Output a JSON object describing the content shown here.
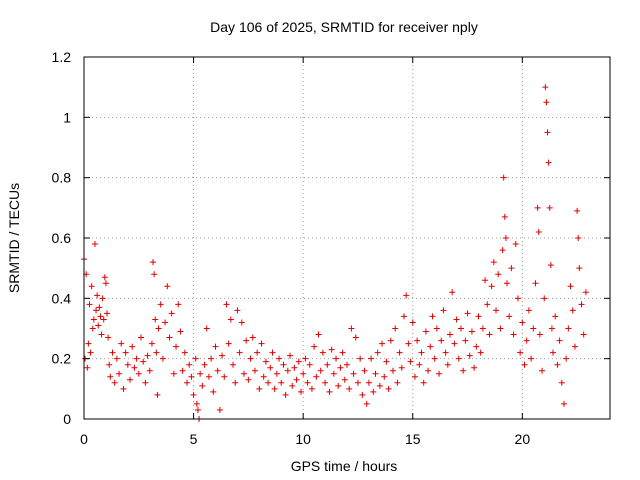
{
  "chart_data": {
    "type": "scatter",
    "title": "Day 106 of 2025, SRMTID for receiver nply",
    "xlabel": "GPS time / hours",
    "ylabel": "SRMTID / TECUs",
    "xlim": [
      0,
      24
    ],
    "ylim": [
      0,
      1.2
    ],
    "x_ticks": [
      0,
      5,
      10,
      15,
      20
    ],
    "x_tick_labels": [
      "0",
      "5",
      "10",
      "15",
      "20"
    ],
    "y_ticks": [
      0,
      0.2,
      0.4,
      0.6,
      0.8,
      1.0,
      1.2
    ],
    "y_tick_labels": [
      "0",
      "0.2",
      "0.4",
      "0.6",
      "0.8",
      "1",
      "1.2"
    ],
    "grid": true,
    "marker": "+",
    "color": "#e00000",
    "series": [
      {
        "name": "SRMTID",
        "points": [
          [
            0.0,
            0.53
          ],
          [
            0.05,
            0.2
          ],
          [
            0.1,
            0.48
          ],
          [
            0.15,
            0.17
          ],
          [
            0.2,
            0.25
          ],
          [
            0.25,
            0.38
          ],
          [
            0.3,
            0.22
          ],
          [
            0.35,
            0.44
          ],
          [
            0.4,
            0.3
          ],
          [
            0.45,
            0.33
          ],
          [
            0.5,
            0.58
          ],
          [
            0.55,
            0.36
          ],
          [
            0.6,
            0.41
          ],
          [
            0.65,
            0.31
          ],
          [
            0.7,
            0.37
          ],
          [
            0.75,
            0.34
          ],
          [
            0.8,
            0.28
          ],
          [
            0.85,
            0.4
          ],
          [
            0.9,
            0.33
          ],
          [
            0.95,
            0.47
          ],
          [
            1.0,
            0.45
          ],
          [
            1.05,
            0.35
          ],
          [
            1.1,
            0.27
          ],
          [
            1.15,
            0.18
          ],
          [
            1.2,
            0.14
          ],
          [
            1.3,
            0.22
          ],
          [
            1.4,
            0.12
          ],
          [
            1.5,
            0.2
          ],
          [
            1.6,
            0.15
          ],
          [
            1.7,
            0.25
          ],
          [
            1.8,
            0.1
          ],
          [
            1.9,
            0.22
          ],
          [
            2.0,
            0.18
          ],
          [
            2.1,
            0.13
          ],
          [
            2.2,
            0.24
          ],
          [
            2.3,
            0.17
          ],
          [
            2.4,
            0.2
          ],
          [
            2.5,
            0.15
          ],
          [
            2.6,
            0.27
          ],
          [
            2.7,
            0.19
          ],
          [
            2.8,
            0.12
          ],
          [
            2.9,
            0.21
          ],
          [
            3.0,
            0.16
          ],
          [
            3.1,
            0.25
          ],
          [
            3.15,
            0.52
          ],
          [
            3.2,
            0.48
          ],
          [
            3.25,
            0.33
          ],
          [
            3.3,
            0.22
          ],
          [
            3.35,
            0.08
          ],
          [
            3.4,
            0.3
          ],
          [
            3.5,
            0.38
          ],
          [
            3.6,
            0.2
          ],
          [
            3.7,
            0.32
          ],
          [
            3.8,
            0.44
          ],
          [
            3.9,
            0.27
          ],
          [
            4.0,
            0.35
          ],
          [
            4.1,
            0.15
          ],
          [
            4.2,
            0.24
          ],
          [
            4.3,
            0.38
          ],
          [
            4.4,
            0.29
          ],
          [
            4.5,
            0.16
          ],
          [
            4.6,
            0.22
          ],
          [
            4.7,
            0.12
          ],
          [
            4.8,
            0.18
          ],
          [
            4.9,
            0.14
          ],
          [
            5.0,
            0.08
          ],
          [
            5.1,
            0.2
          ],
          [
            5.15,
            0.05
          ],
          [
            5.2,
            0.03
          ],
          [
            5.25,
            0.0
          ],
          [
            5.3,
            0.15
          ],
          [
            5.4,
            0.11
          ],
          [
            5.5,
            0.18
          ],
          [
            5.6,
            0.3
          ],
          [
            5.7,
            0.14
          ],
          [
            5.8,
            0.2
          ],
          [
            5.9,
            0.09
          ],
          [
            6.0,
            0.24
          ],
          [
            6.1,
            0.16
          ],
          [
            6.2,
            0.03
          ],
          [
            6.3,
            0.21
          ],
          [
            6.4,
            0.14
          ],
          [
            6.5,
            0.38
          ],
          [
            6.6,
            0.25
          ],
          [
            6.7,
            0.33
          ],
          [
            6.8,
            0.18
          ],
          [
            6.9,
            0.12
          ],
          [
            7.0,
            0.36
          ],
          [
            7.1,
            0.22
          ],
          [
            7.2,
            0.32
          ],
          [
            7.3,
            0.15
          ],
          [
            7.4,
            0.26
          ],
          [
            7.5,
            0.13
          ],
          [
            7.6,
            0.2
          ],
          [
            7.7,
            0.27
          ],
          [
            7.8,
            0.16
          ],
          [
            7.9,
            0.22
          ],
          [
            8.0,
            0.1
          ],
          [
            8.1,
            0.25
          ],
          [
            8.2,
            0.14
          ],
          [
            8.3,
            0.19
          ],
          [
            8.4,
            0.12
          ],
          [
            8.5,
            0.17
          ],
          [
            8.6,
            0.22
          ],
          [
            8.7,
            0.1
          ],
          [
            8.8,
            0.15
          ],
          [
            8.9,
            0.2
          ],
          [
            9.0,
            0.12
          ],
          [
            9.1,
            0.18
          ],
          [
            9.2,
            0.08
          ],
          [
            9.3,
            0.16
          ],
          [
            9.4,
            0.21
          ],
          [
            9.5,
            0.11
          ],
          [
            9.6,
            0.17
          ],
          [
            9.7,
            0.13
          ],
          [
            9.8,
            0.19
          ],
          [
            9.9,
            0.09
          ],
          [
            10.0,
            0.15
          ],
          [
            10.1,
            0.2
          ],
          [
            10.2,
            0.12
          ],
          [
            10.3,
            0.18
          ],
          [
            10.4,
            0.1
          ],
          [
            10.5,
            0.24
          ],
          [
            10.6,
            0.14
          ],
          [
            10.7,
            0.28
          ],
          [
            10.8,
            0.16
          ],
          [
            10.9,
            0.22
          ],
          [
            11.0,
            0.12
          ],
          [
            11.1,
            0.18
          ],
          [
            11.2,
            0.09
          ],
          [
            11.3,
            0.23
          ],
          [
            11.4,
            0.15
          ],
          [
            11.5,
            0.2
          ],
          [
            11.6,
            0.11
          ],
          [
            11.7,
            0.17
          ],
          [
            11.8,
            0.22
          ],
          [
            11.9,
            0.13
          ],
          [
            12.0,
            0.18
          ],
          [
            12.1,
            0.1
          ],
          [
            12.2,
            0.3
          ],
          [
            12.3,
            0.15
          ],
          [
            12.4,
            0.27
          ],
          [
            12.5,
            0.12
          ],
          [
            12.6,
            0.2
          ],
          [
            12.7,
            0.08
          ],
          [
            12.8,
            0.16
          ],
          [
            12.9,
            0.05
          ],
          [
            13.0,
            0.12
          ],
          [
            13.1,
            0.2
          ],
          [
            13.2,
            0.09
          ],
          [
            13.3,
            0.15
          ],
          [
            13.4,
            0.22
          ],
          [
            13.5,
            0.11
          ],
          [
            13.6,
            0.25
          ],
          [
            13.7,
            0.14
          ],
          [
            13.8,
            0.19
          ],
          [
            13.9,
            0.1
          ],
          [
            14.0,
            0.26
          ],
          [
            14.1,
            0.16
          ],
          [
            14.2,
            0.3
          ],
          [
            14.3,
            0.12
          ],
          [
            14.4,
            0.22
          ],
          [
            14.5,
            0.17
          ],
          [
            14.6,
            0.34
          ],
          [
            14.7,
            0.41
          ],
          [
            14.8,
            0.25
          ],
          [
            14.9,
            0.19
          ],
          [
            15.0,
            0.32
          ],
          [
            15.1,
            0.14
          ],
          [
            15.2,
            0.26
          ],
          [
            15.3,
            0.18
          ],
          [
            15.4,
            0.22
          ],
          [
            15.5,
            0.12
          ],
          [
            15.6,
            0.29
          ],
          [
            15.7,
            0.16
          ],
          [
            15.8,
            0.24
          ],
          [
            15.9,
            0.34
          ],
          [
            16.0,
            0.2
          ],
          [
            16.1,
            0.3
          ],
          [
            16.2,
            0.15
          ],
          [
            16.3,
            0.26
          ],
          [
            16.4,
            0.36
          ],
          [
            16.5,
            0.22
          ],
          [
            16.6,
            0.18
          ],
          [
            16.7,
            0.28
          ],
          [
            16.8,
            0.42
          ],
          [
            16.9,
            0.25
          ],
          [
            17.0,
            0.33
          ],
          [
            17.1,
            0.2
          ],
          [
            17.2,
            0.3
          ],
          [
            17.3,
            0.16
          ],
          [
            17.4,
            0.26
          ],
          [
            17.5,
            0.35
          ],
          [
            17.6,
            0.21
          ],
          [
            17.7,
            0.29
          ],
          [
            17.8,
            0.17
          ],
          [
            17.9,
            0.24
          ],
          [
            18.0,
            0.34
          ],
          [
            18.1,
            0.22
          ],
          [
            18.2,
            0.3
          ],
          [
            18.3,
            0.46
          ],
          [
            18.4,
            0.38
          ],
          [
            18.5,
            0.28
          ],
          [
            18.6,
            0.44
          ],
          [
            18.7,
            0.52
          ],
          [
            18.8,
            0.36
          ],
          [
            18.9,
            0.48
          ],
          [
            19.0,
            0.3
          ],
          [
            19.1,
            0.56
          ],
          [
            19.15,
            0.8
          ],
          [
            19.2,
            0.67
          ],
          [
            19.25,
            0.6
          ],
          [
            19.3,
            0.45
          ],
          [
            19.4,
            0.34
          ],
          [
            19.5,
            0.5
          ],
          [
            19.6,
            0.28
          ],
          [
            19.7,
            0.58
          ],
          [
            19.8,
            0.4
          ],
          [
            19.9,
            0.22
          ],
          [
            20.0,
            0.32
          ],
          [
            20.1,
            0.18
          ],
          [
            20.2,
            0.26
          ],
          [
            20.3,
            0.36
          ],
          [
            20.4,
            0.2
          ],
          [
            20.5,
            0.3
          ],
          [
            20.6,
            0.45
          ],
          [
            20.7,
            0.7
          ],
          [
            20.75,
            0.62
          ],
          [
            20.8,
            0.28
          ],
          [
            20.9,
            0.16
          ],
          [
            21.0,
            0.4
          ],
          [
            21.05,
            1.1
          ],
          [
            21.1,
            1.05
          ],
          [
            21.15,
            0.95
          ],
          [
            21.2,
            0.85
          ],
          [
            21.25,
            0.7
          ],
          [
            21.3,
            0.51
          ],
          [
            21.35,
            0.3
          ],
          [
            21.4,
            0.22
          ],
          [
            21.5,
            0.34
          ],
          [
            21.6,
            0.18
          ],
          [
            21.7,
            0.26
          ],
          [
            21.8,
            0.12
          ],
          [
            21.9,
            0.05
          ],
          [
            22.0,
            0.2
          ],
          [
            22.1,
            0.3
          ],
          [
            22.2,
            0.44
          ],
          [
            22.3,
            0.36
          ],
          [
            22.4,
            0.24
          ],
          [
            22.5,
            0.69
          ],
          [
            22.55,
            0.6
          ],
          [
            22.6,
            0.5
          ],
          [
            22.7,
            0.38
          ],
          [
            22.8,
            0.28
          ],
          [
            22.9,
            0.42
          ]
        ]
      }
    ]
  }
}
